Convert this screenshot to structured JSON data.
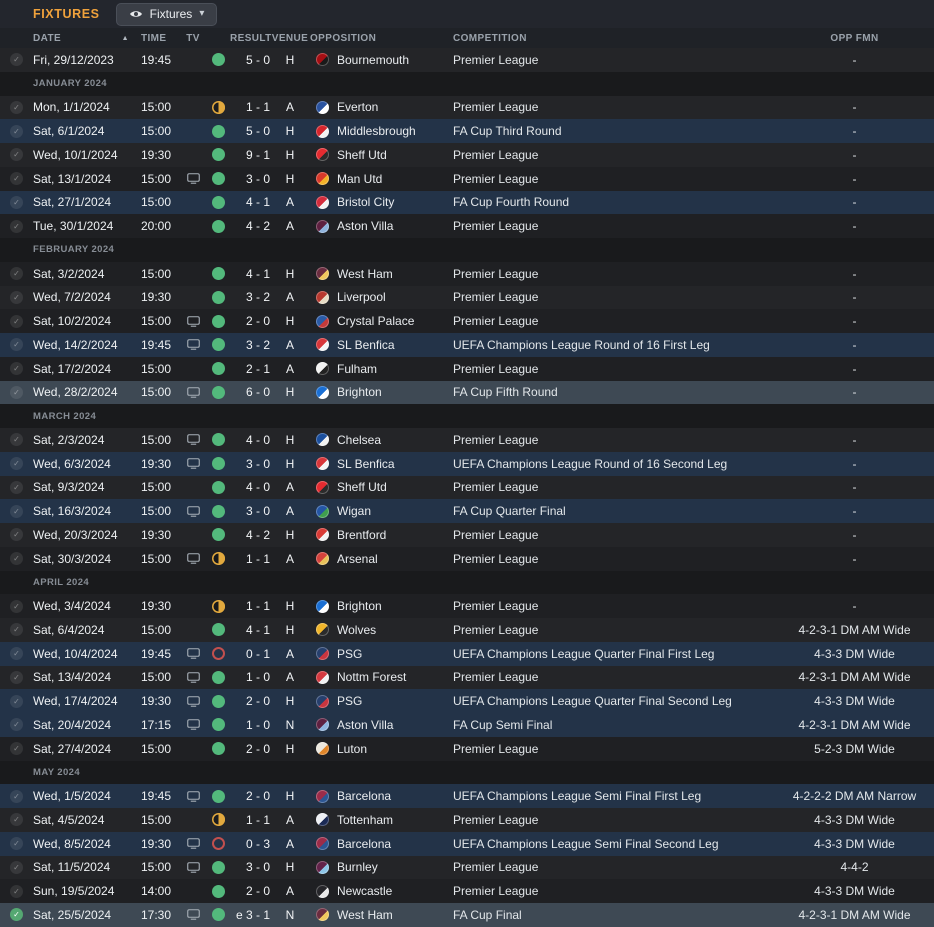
{
  "topbar": {
    "title": "FIXTURES",
    "view_button": {
      "label": "Fixtures",
      "icon": "eye-icon",
      "chevron_icon": "chevron-down-icon"
    }
  },
  "table": {
    "columns": {
      "date": "DATE",
      "time": "TIME",
      "tv": "TV",
      "result": "RESULT",
      "venue": "VENUE",
      "opposition": "OPPOSITION",
      "competition": "COMPETITION",
      "opp_fmn": "OPP FMN"
    },
    "sort": {
      "column": "date",
      "direction": "asc",
      "icon": "sort-ascending-icon"
    }
  },
  "colors": {
    "accent_orange": "#f0a23c",
    "win_green": "#53b97c",
    "draw_orange": "#e2a93e",
    "loss_red": "#c2504e",
    "cup_row": "#233348",
    "cup_row_light": "#3e4954",
    "played_check_green": "#55a872"
  },
  "rows": [
    {
      "type": "match",
      "date": "Fri, 29/12/2023",
      "time": "19:45",
      "tv": false,
      "outcome": "win",
      "score": "5 - 0",
      "venue": "H",
      "opponent": "Bournemouth",
      "badge": [
        "#a50e13",
        "#1a1a1a"
      ],
      "competition": "Premier League",
      "opp_fmn": "-",
      "highlight": "none",
      "check": "grey"
    },
    {
      "type": "month",
      "label": "JANUARY 2024"
    },
    {
      "type": "match",
      "date": "Mon, 1/1/2024",
      "time": "15:00",
      "tv": false,
      "outcome": "draw",
      "score": "1 - 1",
      "venue": "A",
      "opponent": "Everton",
      "badge": [
        "#2a53a0",
        "#ffffff"
      ],
      "competition": "Premier League",
      "opp_fmn": "-",
      "highlight": "none",
      "check": "grey"
    },
    {
      "type": "match",
      "date": "Sat, 6/1/2024",
      "time": "15:00",
      "tv": false,
      "outcome": "win",
      "score": "5 - 0",
      "venue": "H",
      "opponent": "Middlesbrough",
      "badge": [
        "#d6252c",
        "#f2f2f2"
      ],
      "competition": "FA Cup Third Round",
      "opp_fmn": "-",
      "highlight": "cup",
      "check": "grey"
    },
    {
      "type": "match",
      "date": "Wed, 10/1/2024",
      "time": "19:30",
      "tv": false,
      "outcome": "win",
      "score": "9 - 1",
      "venue": "H",
      "opponent": "Sheff Utd",
      "badge": [
        "#e52b30",
        "#2b2b2b"
      ],
      "competition": "Premier League",
      "opp_fmn": "-",
      "highlight": "none",
      "check": "grey"
    },
    {
      "type": "match",
      "date": "Sat, 13/1/2024",
      "time": "15:00",
      "tv": true,
      "outcome": "win",
      "score": "3 - 0",
      "venue": "H",
      "opponent": "Man Utd",
      "badge": [
        "#d8392a",
        "#f3b229"
      ],
      "competition": "Premier League",
      "opp_fmn": "-",
      "highlight": "none",
      "check": "grey"
    },
    {
      "type": "match",
      "date": "Sat, 27/1/2024",
      "time": "15:00",
      "tv": false,
      "outcome": "win",
      "score": "4 - 1",
      "venue": "A",
      "opponent": "Bristol City",
      "badge": [
        "#d32c3c",
        "#f2f2f2"
      ],
      "competition": "FA Cup Fourth Round",
      "opp_fmn": "-",
      "highlight": "cup",
      "check": "grey"
    },
    {
      "type": "match",
      "date": "Tue, 30/1/2024",
      "time": "20:00",
      "tv": false,
      "outcome": "win",
      "score": "4 - 2",
      "venue": "A",
      "opponent": "Aston Villa",
      "badge": [
        "#5e2040",
        "#8fb3dd"
      ],
      "competition": "Premier League",
      "opp_fmn": "-",
      "highlight": "none",
      "check": "grey"
    },
    {
      "type": "month",
      "label": "FEBRUARY 2024"
    },
    {
      "type": "match",
      "date": "Sat, 3/2/2024",
      "time": "15:00",
      "tv": false,
      "outcome": "win",
      "score": "4 - 1",
      "venue": "H",
      "opponent": "West Ham",
      "badge": [
        "#6b2c3f",
        "#f0c75e"
      ],
      "competition": "Premier League",
      "opp_fmn": "-",
      "highlight": "none",
      "check": "grey"
    },
    {
      "type": "match",
      "date": "Wed, 7/2/2024",
      "time": "19:30",
      "tv": false,
      "outcome": "win",
      "score": "3 - 2",
      "venue": "A",
      "opponent": "Liverpool",
      "badge": [
        "#b8392f",
        "#e7dcc5"
      ],
      "competition": "Premier League",
      "opp_fmn": "-",
      "highlight": "none",
      "check": "grey"
    },
    {
      "type": "match",
      "date": "Sat, 10/2/2024",
      "time": "15:00",
      "tv": true,
      "outcome": "win",
      "score": "2 - 0",
      "venue": "H",
      "opponent": "Crystal Palace",
      "badge": [
        "#2b5ba7",
        "#c43a3a"
      ],
      "competition": "Premier League",
      "opp_fmn": "-",
      "highlight": "none",
      "check": "grey"
    },
    {
      "type": "match",
      "date": "Wed, 14/2/2024",
      "time": "19:45",
      "tv": true,
      "outcome": "win",
      "score": "3 - 2",
      "venue": "A",
      "opponent": "SL Benfica",
      "badge": [
        "#d8363a",
        "#f5f5f5"
      ],
      "competition": "UEFA Champions League Round of 16 First Leg",
      "opp_fmn": "-",
      "highlight": "cup",
      "check": "grey"
    },
    {
      "type": "match",
      "date": "Sat, 17/2/2024",
      "time": "15:00",
      "tv": false,
      "outcome": "win",
      "score": "2 - 1",
      "venue": "A",
      "opponent": "Fulham",
      "badge": [
        "#f2f2f2",
        "#222222"
      ],
      "competition": "Premier League",
      "opp_fmn": "-",
      "highlight": "none",
      "check": "grey"
    },
    {
      "type": "match",
      "date": "Wed, 28/2/2024",
      "time": "15:00",
      "tv": true,
      "outcome": "win",
      "score": "6 - 0",
      "venue": "H",
      "opponent": "Brighton",
      "badge": [
        "#1a6fd4",
        "#ffffff"
      ],
      "competition": "FA Cup Fifth Round",
      "opp_fmn": "-",
      "highlight": "cup-light",
      "check": "grey"
    },
    {
      "type": "month",
      "label": "MARCH 2024"
    },
    {
      "type": "match",
      "date": "Sat, 2/3/2024",
      "time": "15:00",
      "tv": true,
      "outcome": "win",
      "score": "4 - 0",
      "venue": "H",
      "opponent": "Chelsea",
      "badge": [
        "#1b4f9e",
        "#f2f2f2"
      ],
      "competition": "Premier League",
      "opp_fmn": "-",
      "highlight": "none",
      "check": "grey"
    },
    {
      "type": "match",
      "date": "Wed, 6/3/2024",
      "time": "19:30",
      "tv": true,
      "outcome": "win",
      "score": "3 - 0",
      "venue": "H",
      "opponent": "SL Benfica",
      "badge": [
        "#d8363a",
        "#f5f5f5"
      ],
      "competition": "UEFA Champions League Round of 16 Second Leg",
      "opp_fmn": "-",
      "highlight": "cup",
      "check": "grey"
    },
    {
      "type": "match",
      "date": "Sat, 9/3/2024",
      "time": "15:00",
      "tv": false,
      "outcome": "win",
      "score": "4 - 0",
      "venue": "A",
      "opponent": "Sheff Utd",
      "badge": [
        "#e52b30",
        "#2b2b2b"
      ],
      "competition": "Premier League",
      "opp_fmn": "-",
      "highlight": "none",
      "check": "grey"
    },
    {
      "type": "match",
      "date": "Sat, 16/3/2024",
      "time": "15:00",
      "tv": true,
      "outcome": "win",
      "score": "3 - 0",
      "venue": "A",
      "opponent": "Wigan",
      "badge": [
        "#2456a5",
        "#3f9e4f"
      ],
      "competition": "FA Cup Quarter Final",
      "opp_fmn": "-",
      "highlight": "cup",
      "check": "grey"
    },
    {
      "type": "match",
      "date": "Wed, 20/3/2024",
      "time": "19:30",
      "tv": false,
      "outcome": "win",
      "score": "4 - 2",
      "venue": "H",
      "opponent": "Brentford",
      "badge": [
        "#d93a35",
        "#f2f2f2"
      ],
      "competition": "Premier League",
      "opp_fmn": "-",
      "highlight": "none",
      "check": "grey"
    },
    {
      "type": "match",
      "date": "Sat, 30/3/2024",
      "time": "15:00",
      "tv": true,
      "outcome": "draw",
      "score": "1 - 1",
      "venue": "A",
      "opponent": "Arsenal",
      "badge": [
        "#d4423c",
        "#e8c15a"
      ],
      "competition": "Premier League",
      "opp_fmn": "-",
      "highlight": "none",
      "check": "grey"
    },
    {
      "type": "month",
      "label": "APRIL 2024"
    },
    {
      "type": "match",
      "date": "Wed, 3/4/2024",
      "time": "19:30",
      "tv": false,
      "outcome": "draw",
      "score": "1 - 1",
      "venue": "H",
      "opponent": "Brighton",
      "badge": [
        "#1a6fd4",
        "#ffffff"
      ],
      "competition": "Premier League",
      "opp_fmn": "-",
      "highlight": "none",
      "check": "grey"
    },
    {
      "type": "match",
      "date": "Sat, 6/4/2024",
      "time": "15:00",
      "tv": false,
      "outcome": "win",
      "score": "4 - 1",
      "venue": "H",
      "opponent": "Wolves",
      "badge": [
        "#f0b52a",
        "#2b2b2b"
      ],
      "competition": "Premier League",
      "opp_fmn": "4-2-3-1 DM AM Wide",
      "highlight": "none",
      "check": "grey"
    },
    {
      "type": "match",
      "date": "Wed, 10/4/2024",
      "time": "19:45",
      "tv": true,
      "outcome": "loss",
      "score": "0 - 1",
      "venue": "A",
      "opponent": "PSG",
      "badge": [
        "#27406e",
        "#c9353f"
      ],
      "competition": "UEFA Champions League Quarter Final First Leg",
      "opp_fmn": "4-3-3 DM Wide",
      "highlight": "cup",
      "check": "grey"
    },
    {
      "type": "match",
      "date": "Sat, 13/4/2024",
      "time": "15:00",
      "tv": true,
      "outcome": "win",
      "score": "1 - 0",
      "venue": "A",
      "opponent": "Nottm Forest",
      "badge": [
        "#d5393f",
        "#f2f2f2"
      ],
      "competition": "Premier League",
      "opp_fmn": "4-2-3-1 DM AM Wide",
      "highlight": "none",
      "check": "grey"
    },
    {
      "type": "match",
      "date": "Wed, 17/4/2024",
      "time": "19:30",
      "tv": true,
      "outcome": "win",
      "score": "2 - 0",
      "venue": "H",
      "opponent": "PSG",
      "badge": [
        "#27406e",
        "#c9353f"
      ],
      "competition": "UEFA Champions League Quarter Final Second Leg",
      "opp_fmn": "4-3-3 DM Wide",
      "highlight": "cup",
      "check": "grey"
    },
    {
      "type": "match",
      "date": "Sat, 20/4/2024",
      "time": "17:15",
      "tv": true,
      "outcome": "win",
      "score": "1 - 0",
      "venue": "N",
      "opponent": "Aston Villa",
      "badge": [
        "#5e2040",
        "#8fb3dd"
      ],
      "competition": "FA Cup Semi Final",
      "opp_fmn": "4-2-3-1 DM AM Wide",
      "highlight": "cup",
      "check": "grey"
    },
    {
      "type": "match",
      "date": "Sat, 27/4/2024",
      "time": "15:00",
      "tv": false,
      "outcome": "win",
      "score": "2 - 0",
      "venue": "H",
      "opponent": "Luton",
      "badge": [
        "#ece8de",
        "#e0862a"
      ],
      "competition": "Premier League",
      "opp_fmn": "5-2-3 DM Wide",
      "highlight": "none",
      "check": "grey"
    },
    {
      "type": "month",
      "label": "MAY 2024"
    },
    {
      "type": "match",
      "date": "Wed, 1/5/2024",
      "time": "19:45",
      "tv": true,
      "outcome": "win",
      "score": "2 - 0",
      "venue": "H",
      "opponent": "Barcelona",
      "badge": [
        "#9c2c49",
        "#2c5693"
      ],
      "competition": "UEFA Champions League Semi Final First Leg",
      "opp_fmn": "4-2-2-2 DM AM Narrow",
      "highlight": "cup",
      "check": "grey"
    },
    {
      "type": "match",
      "date": "Sat, 4/5/2024",
      "time": "15:00",
      "tv": false,
      "outcome": "draw",
      "score": "1 - 1",
      "venue": "A",
      "opponent": "Tottenham",
      "badge": [
        "#eef0f4",
        "#1b2a55"
      ],
      "competition": "Premier League",
      "opp_fmn": "4-3-3 DM Wide",
      "highlight": "none",
      "check": "grey"
    },
    {
      "type": "match",
      "date": "Wed, 8/5/2024",
      "time": "19:30",
      "tv": true,
      "outcome": "loss",
      "score": "0 - 3",
      "venue": "A",
      "opponent": "Barcelona",
      "badge": [
        "#9c2c49",
        "#2c5693"
      ],
      "competition": "UEFA Champions League Semi Final Second Leg",
      "opp_fmn": "4-3-3 DM Wide",
      "highlight": "cup",
      "check": "grey"
    },
    {
      "type": "match",
      "date": "Sat, 11/5/2024",
      "time": "15:00",
      "tv": true,
      "outcome": "win",
      "score": "3 - 0",
      "venue": "H",
      "opponent": "Burnley",
      "badge": [
        "#63234a",
        "#8ec6e8"
      ],
      "competition": "Premier League",
      "opp_fmn": "4-4-2",
      "highlight": "none",
      "check": "grey"
    },
    {
      "type": "match",
      "date": "Sun, 19/5/2024",
      "time": "14:00",
      "tv": false,
      "outcome": "win",
      "score": "2 - 0",
      "venue": "A",
      "opponent": "Newcastle",
      "badge": [
        "#26262a",
        "#e8e8e8"
      ],
      "competition": "Premier League",
      "opp_fmn": "4-3-3 DM Wide",
      "highlight": "none",
      "check": "grey"
    },
    {
      "type": "match",
      "date": "Sat, 25/5/2024",
      "time": "17:30",
      "tv": true,
      "outcome": "win",
      "score": "e 3 - 1",
      "venue": "N",
      "opponent": "West Ham",
      "badge": [
        "#6b2c3f",
        "#f0c75e"
      ],
      "competition": "FA Cup Final",
      "opp_fmn": "4-2-3-1 DM AM Wide",
      "highlight": "cup-light",
      "check": "green"
    }
  ]
}
